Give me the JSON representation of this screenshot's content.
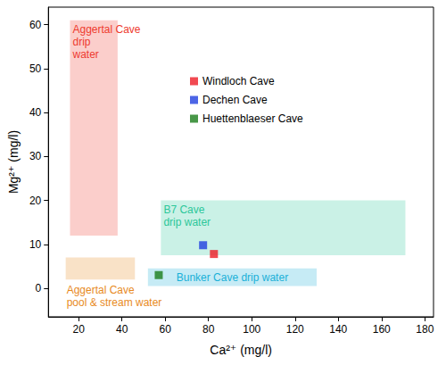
{
  "chart_data": {
    "type": "scatter",
    "xlabel": "Ca²⁺ (mg/l)",
    "ylabel": "Mg²⁺ (mg/l)",
    "xlim": [
      6,
      184
    ],
    "ylim": [
      -6.5,
      64
    ],
    "xticks": [
      20,
      40,
      60,
      80,
      100,
      120,
      140,
      160,
      180
    ],
    "yticks": [
      0,
      10,
      20,
      30,
      40,
      50,
      60
    ],
    "grid": false,
    "legend": "upper center",
    "marker": "square",
    "series": [
      {
        "name": "Windloch Cave",
        "color": "#ee1c25",
        "x": [
          82.5
        ],
        "values": [
          7.8
        ]
      },
      {
        "name": "Dechen Cave",
        "color": "#1f3fe0",
        "x": [
          77.5
        ],
        "values": [
          9.8
        ]
      },
      {
        "name": "Huettenblaeser Cave",
        "color": "#1a7d1a",
        "x": [
          57
        ],
        "values": [
          3
        ]
      }
    ],
    "regions": [
      {
        "label": "Aggertal Cave\ndrip\nwater",
        "color": "#ee3a2e",
        "x": [
          16,
          38
        ],
        "y": [
          12,
          61
        ]
      },
      {
        "label": "Aggertal Cave\npool & stream water",
        "color": "#e88a1e",
        "x": [
          14,
          46
        ],
        "y": [
          2,
          7
        ]
      },
      {
        "label": "B7 Cave\ndrip water",
        "color": "#2cc79a",
        "x": [
          58,
          171
        ],
        "y": [
          7.5,
          20
        ]
      },
      {
        "label": "Bunker Cave drip water",
        "color": "#1ab0d8",
        "x": [
          52,
          130
        ],
        "y": [
          0.5,
          4.5
        ]
      }
    ]
  }
}
